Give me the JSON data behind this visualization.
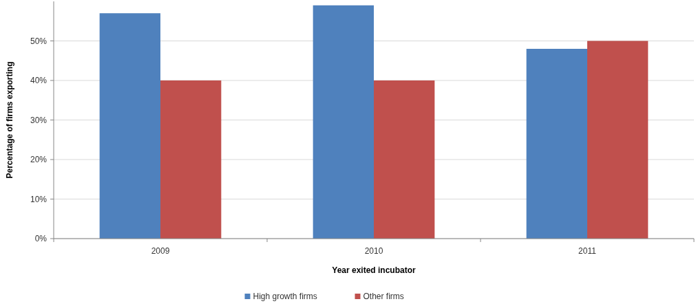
{
  "chart_data": {
    "type": "bar",
    "xlabel": "Year exited incubator",
    "ylabel": "Percentage of firms exporting",
    "categories": [
      "2009",
      "2010",
      "2011"
    ],
    "series": [
      {
        "name": "High growth firms",
        "color": "#4f81bd",
        "values": [
          57,
          59,
          48
        ]
      },
      {
        "name": "Other firms",
        "color": "#c0504d",
        "values": [
          40,
          40,
          50
        ]
      }
    ],
    "ylim": [
      0,
      60
    ],
    "yticks": [
      {
        "value": 0,
        "label": "0%"
      },
      {
        "value": 10,
        "label": "10%"
      },
      {
        "value": 20,
        "label": "20%"
      },
      {
        "value": 30,
        "label": "30%"
      },
      {
        "value": 40,
        "label": "40%"
      },
      {
        "value": 50,
        "label": "50%"
      }
    ],
    "grid": "y",
    "legend": "bottom"
  }
}
